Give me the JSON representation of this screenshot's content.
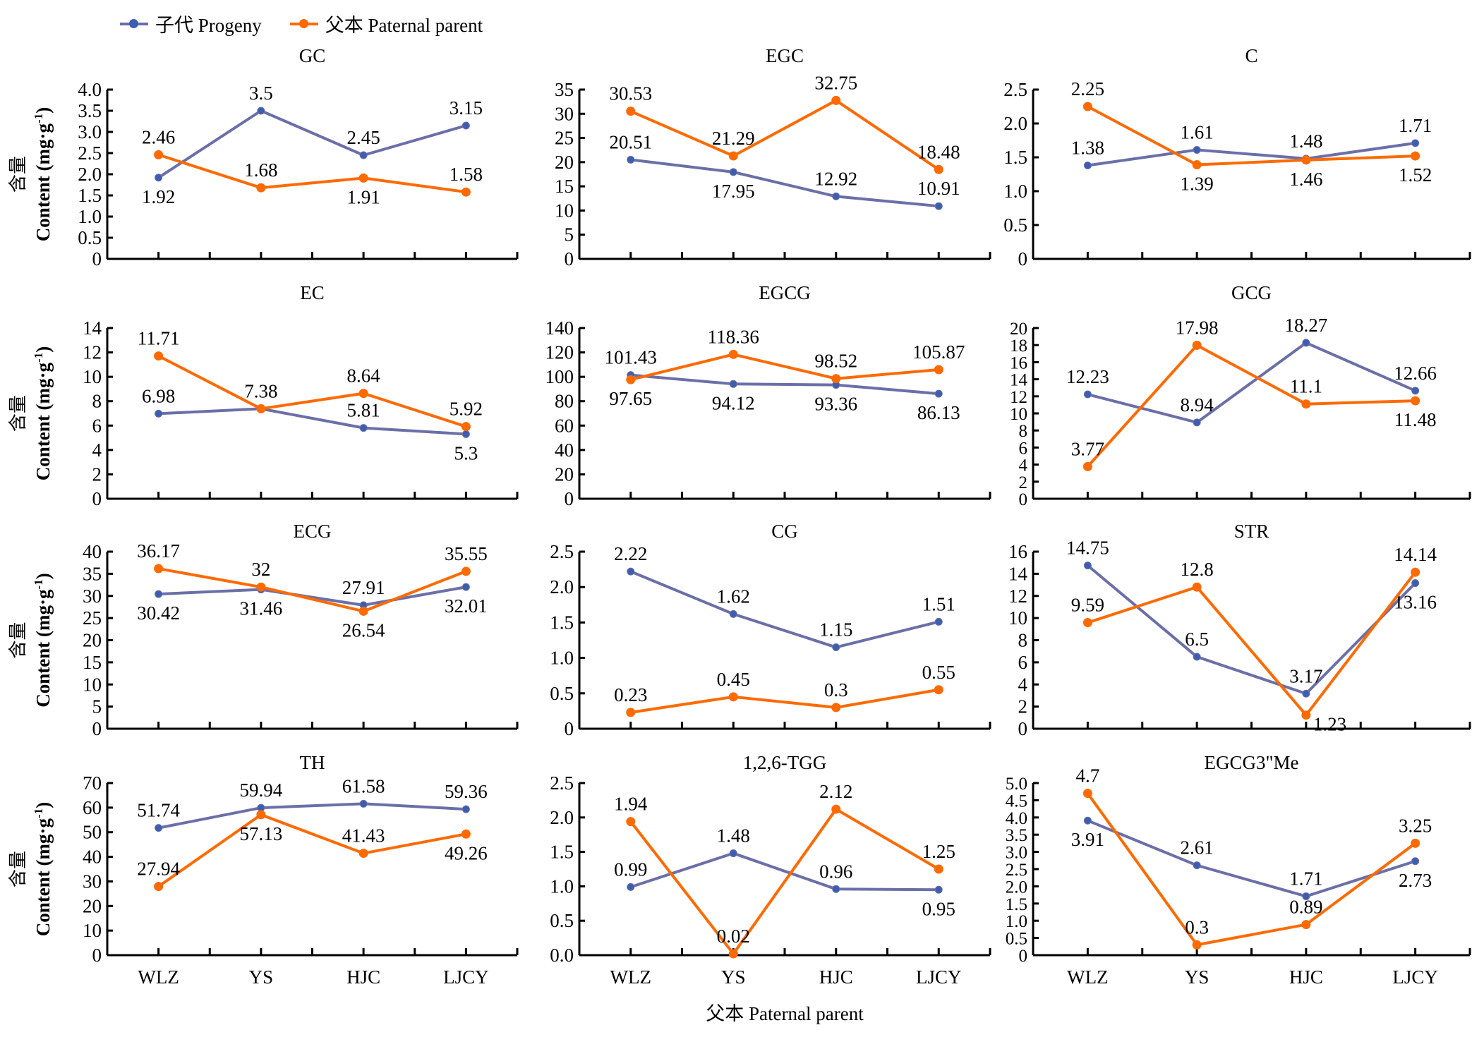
{
  "legend": [
    {
      "name": "子代 Progeny",
      "color": "#6b6fa8",
      "marker_color": "#3d5db0"
    },
    {
      "name": "父本 Paternal parent",
      "color": "#ff6a00",
      "marker_color": "#ff6a00"
    }
  ],
  "xlabel": "父本 Paternal parent",
  "ylabel_cn": "含量",
  "ylabel_en": "Content (mg·g",
  "ylabel_sup": "-1",
  "chart_data": [
    {
      "type": "line",
      "title": "GC",
      "categories": [
        "WLZ",
        "YS",
        "HJC",
        "LJCY"
      ],
      "ylim": [
        0,
        4.0
      ],
      "yticks": [
        "0",
        "0.5",
        "1.0",
        "1.5",
        "2.0",
        "2.5",
        "3.0",
        "3.5",
        "4.0"
      ],
      "series": [
        {
          "name": "子代 Progeny",
          "values": [
            1.92,
            3.5,
            2.45,
            3.15
          ],
          "labels": [
            "1.92",
            "3.5",
            "2.45",
            "3.15"
          ],
          "label_pos": [
            "below",
            "above",
            "above",
            "above"
          ]
        },
        {
          "name": "父本 Paternal parent",
          "values": [
            2.46,
            1.68,
            1.91,
            1.58
          ],
          "labels": [
            "2.46",
            "1.68",
            "1.91",
            "1.58"
          ],
          "label_pos": [
            "above",
            "above",
            "below",
            "above"
          ]
        }
      ]
    },
    {
      "type": "line",
      "title": "EGC",
      "categories": [
        "WLZ",
        "YS",
        "HJC",
        "LJCY"
      ],
      "ylim": [
        0,
        35
      ],
      "yticks": [
        "0",
        "5",
        "10",
        "15",
        "20",
        "25",
        "30",
        "35"
      ],
      "series": [
        {
          "name": "子代 Progeny",
          "values": [
            20.51,
            17.95,
            12.92,
            10.91
          ],
          "labels": [
            "20.51",
            "17.95",
            "12.92",
            "10.91"
          ],
          "label_pos": [
            "above",
            "below",
            "above",
            "above"
          ]
        },
        {
          "name": "父本 Paternal parent",
          "values": [
            30.53,
            21.29,
            32.75,
            18.48
          ],
          "labels": [
            "30.53",
            "21.29",
            "32.75",
            "18.48"
          ],
          "label_pos": [
            "above",
            "above",
            "above",
            "above"
          ]
        }
      ]
    },
    {
      "type": "line",
      "title": "C",
      "categories": [
        "WLZ",
        "YS",
        "HJC",
        "LJCY"
      ],
      "ylim": [
        0,
        2.5
      ],
      "yticks": [
        "0",
        "0.5",
        "1.0",
        "1.5",
        "2.0",
        "2.5"
      ],
      "series": [
        {
          "name": "子代 Progeny",
          "values": [
            1.38,
            1.61,
            1.48,
            1.71
          ],
          "labels": [
            "1.38",
            "1.61",
            "1.48",
            "1.71"
          ],
          "label_pos": [
            "above",
            "above",
            "above",
            "above"
          ]
        },
        {
          "name": "父本 Paternal parent",
          "values": [
            2.25,
            1.39,
            1.46,
            1.52
          ],
          "labels": [
            "2.25",
            "1.39",
            "1.46",
            "1.52"
          ],
          "label_pos": [
            "above",
            "below",
            "below",
            "below"
          ]
        }
      ]
    },
    {
      "type": "line",
      "title": "EC",
      "categories": [
        "WLZ",
        "YS",
        "HJC",
        "LJCY"
      ],
      "ylim": [
        0,
        14
      ],
      "yticks": [
        "0",
        "2",
        "4",
        "6",
        "8",
        "10",
        "12",
        "14"
      ],
      "series": [
        {
          "name": "子代 Progeny",
          "values": [
            6.98,
            7.38,
            5.81,
            5.3
          ],
          "labels": [
            "6.98",
            "",
            "5.81",
            "5.3"
          ],
          "label_pos": [
            "above",
            "above",
            "above",
            "below"
          ]
        },
        {
          "name": "父本 Paternal parent",
          "values": [
            11.71,
            7.38,
            8.64,
            5.92
          ],
          "labels": [
            "11.71",
            "7.38",
            "8.64",
            "5.92"
          ],
          "label_pos": [
            "above",
            "above",
            "above",
            "above"
          ]
        }
      ]
    },
    {
      "type": "line",
      "title": "EGCG",
      "categories": [
        "WLZ",
        "YS",
        "HJC",
        "LJCY"
      ],
      "ylim": [
        0,
        140
      ],
      "yticks": [
        "0",
        "20",
        "40",
        "60",
        "80",
        "100",
        "120",
        "140"
      ],
      "series": [
        {
          "name": "子代 Progeny",
          "values": [
            101.43,
            94.12,
            93.36,
            86.13
          ],
          "labels": [
            "101.43",
            "94.12",
            "93.36",
            "86.13"
          ],
          "label_pos": [
            "above",
            "below",
            "below",
            "below"
          ]
        },
        {
          "name": "父本 Paternal parent",
          "values": [
            97.65,
            118.36,
            98.52,
            105.87
          ],
          "labels": [
            "97.65",
            "118.36",
            "98.52",
            "105.87"
          ],
          "label_pos": [
            "below",
            "above",
            "above",
            "above"
          ]
        }
      ]
    },
    {
      "type": "line",
      "title": "GCG",
      "categories": [
        "WLZ",
        "YS",
        "HJC",
        "LJCY"
      ],
      "ylim": [
        0,
        20
      ],
      "yticks": [
        "0",
        "2",
        "4",
        "6",
        "8",
        "10",
        "12",
        "14",
        "16",
        "18",
        "20"
      ],
      "series": [
        {
          "name": "子代 Progeny",
          "values": [
            12.23,
            8.94,
            18.27,
            12.66
          ],
          "labels": [
            "12.23",
            "8.94",
            "18.27",
            "12.66"
          ],
          "label_pos": [
            "above",
            "above",
            "above",
            "above"
          ]
        },
        {
          "name": "父本 Paternal parent",
          "values": [
            3.77,
            17.98,
            11.1,
            11.48
          ],
          "labels": [
            "3.77",
            "17.98",
            "11.1",
            "11.48"
          ],
          "label_pos": [
            "above",
            "above",
            "above",
            "below"
          ]
        }
      ]
    },
    {
      "type": "line",
      "title": "ECG",
      "categories": [
        "WLZ",
        "YS",
        "HJC",
        "LJCY"
      ],
      "ylim": [
        0,
        40
      ],
      "yticks": [
        "0",
        "5",
        "10",
        "15",
        "20",
        "25",
        "30",
        "35",
        "40"
      ],
      "series": [
        {
          "name": "子代 Progeny",
          "values": [
            30.42,
            31.46,
            27.91,
            32.01
          ],
          "labels": [
            "30.42",
            "31.46",
            "27.91",
            "32.01"
          ],
          "label_pos": [
            "below",
            "below",
            "above",
            "below"
          ]
        },
        {
          "name": "父本 Paternal parent",
          "values": [
            36.17,
            32,
            26.54,
            35.55
          ],
          "labels": [
            "36.17",
            "32",
            "26.54",
            "35.55"
          ],
          "label_pos": [
            "above",
            "above",
            "below",
            "above"
          ]
        }
      ]
    },
    {
      "type": "line",
      "title": "CG",
      "categories": [
        "WLZ",
        "YS",
        "HJC",
        "LJCY"
      ],
      "ylim": [
        0,
        2.5
      ],
      "yticks": [
        "0",
        "0.5",
        "1.0",
        "1.5",
        "2.0",
        "2.5"
      ],
      "series": [
        {
          "name": "子代 Progeny",
          "values": [
            2.22,
            1.62,
            1.15,
            1.51
          ],
          "labels": [
            "2.22",
            "1.62",
            "1.15",
            "1.51"
          ],
          "label_pos": [
            "above",
            "above",
            "above",
            "above"
          ]
        },
        {
          "name": "父本 Paternal parent",
          "values": [
            0.23,
            0.45,
            0.3,
            0.55
          ],
          "labels": [
            "0.23",
            "0.45",
            "0.3",
            "0.55"
          ],
          "label_pos": [
            "above",
            "above",
            "above",
            "above"
          ]
        }
      ]
    },
    {
      "type": "line",
      "title": "STR",
      "categories": [
        "WLZ",
        "YS",
        "HJC",
        "LJCY"
      ],
      "ylim": [
        0,
        16
      ],
      "yticks": [
        "0",
        "2",
        "4",
        "6",
        "8",
        "10",
        "12",
        "14",
        "16"
      ],
      "series": [
        {
          "name": "子代 Progeny",
          "values": [
            14.75,
            6.5,
            3.17,
            13.16
          ],
          "labels": [
            "14.75",
            "6.5",
            "3.17",
            "13.16"
          ],
          "label_pos": [
            "above",
            "above",
            "above",
            "below"
          ]
        },
        {
          "name": "父本 Paternal parent",
          "values": [
            9.59,
            12.8,
            1.23,
            14.14
          ],
          "labels": [
            "9.59",
            "12.8",
            "1.23",
            "14.14"
          ],
          "label_pos": [
            "above",
            "above",
            "right",
            "above"
          ]
        }
      ]
    },
    {
      "type": "line",
      "title": "TH",
      "categories": [
        "WLZ",
        "YS",
        "HJC",
        "LJCY"
      ],
      "ylim": [
        0,
        70
      ],
      "yticks": [
        "0",
        "10",
        "20",
        "30",
        "40",
        "50",
        "60",
        "70"
      ],
      "series": [
        {
          "name": "子代 Progeny",
          "values": [
            51.74,
            59.94,
            61.58,
            59.36
          ],
          "labels": [
            "51.74",
            "59.94",
            "61.58",
            "59.36"
          ],
          "label_pos": [
            "above",
            "above",
            "above",
            "above"
          ]
        },
        {
          "name": "父本 Paternal parent",
          "values": [
            27.94,
            57.13,
            41.43,
            49.26
          ],
          "labels": [
            "27.94",
            "57.13",
            "41.43",
            "49.26"
          ],
          "label_pos": [
            "above",
            "below",
            "above",
            "below"
          ]
        }
      ]
    },
    {
      "type": "line",
      "title": "1,2,6-TGG",
      "categories": [
        "WLZ",
        "YS",
        "HJC",
        "LJCY"
      ],
      "ylim": [
        0,
        2.5
      ],
      "yticks": [
        "0.0",
        "0.5",
        "1.0",
        "1.5",
        "2.0",
        "2.5"
      ],
      "series": [
        {
          "name": "子代 Progeny",
          "values": [
            0.99,
            1.48,
            0.96,
            0.95
          ],
          "labels": [
            "0.99",
            "1.48",
            "0.96",
            "0.95"
          ],
          "label_pos": [
            "above",
            "above",
            "above",
            "below"
          ]
        },
        {
          "name": "父本 Paternal parent",
          "values": [
            1.94,
            0.02,
            2.12,
            1.25
          ],
          "labels": [
            "1.94",
            "0.02",
            "2.12",
            "1.25"
          ],
          "label_pos": [
            "above",
            "above",
            "above",
            "above"
          ]
        }
      ]
    },
    {
      "type": "line",
      "title": "EGCG3\"Me",
      "categories": [
        "WLZ",
        "YS",
        "HJC",
        "LJCY"
      ],
      "ylim": [
        0,
        5.0
      ],
      "yticks": [
        "0",
        "0.5",
        "1.0",
        "1.5",
        "2.0",
        "2.5",
        "3.0",
        "3.5",
        "4.0",
        "4.5",
        "5.0"
      ],
      "series": [
        {
          "name": "子代 Progeny",
          "values": [
            3.91,
            2.61,
            1.71,
            2.73
          ],
          "labels": [
            "3.91",
            "2.61",
            "1.71",
            "2.73"
          ],
          "label_pos": [
            "below",
            "above",
            "above",
            "below"
          ]
        },
        {
          "name": "父本 Paternal parent",
          "values": [
            4.7,
            0.3,
            0.89,
            3.25
          ],
          "labels": [
            "4.7",
            "0.3",
            "0.89",
            "3.25"
          ],
          "label_pos": [
            "above",
            "above",
            "above",
            "above"
          ]
        }
      ]
    }
  ]
}
